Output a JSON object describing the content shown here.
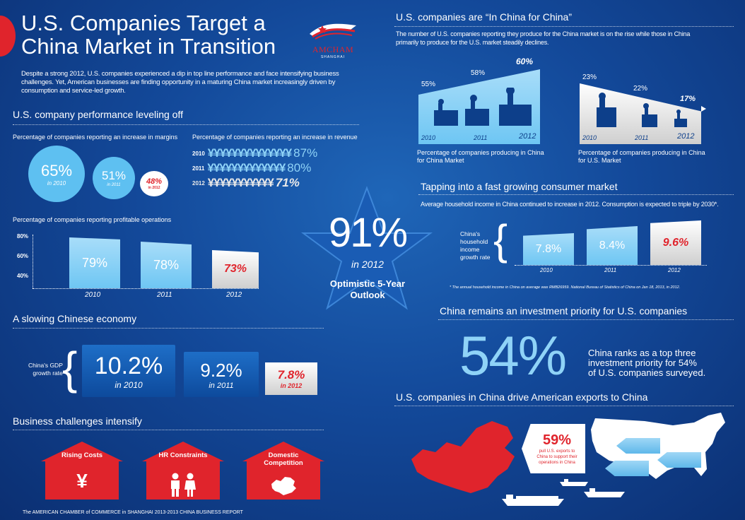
{
  "header": {
    "title_line1": "U.S. Companies Target a",
    "title_line2": "China Market in Transition",
    "logo_main": "AMCHAM",
    "logo_sub": "SHANGHAI",
    "intro": "Despite a strong 2012, U.S. companies experienced a dip in top line performance and face intensifying business challenges. Yet, American businesses are finding opportunity in a maturing China market increasingly driven by consumption and service-led growth."
  },
  "performance": {
    "heading": "U.S. company performance leveling off",
    "margins": {
      "label": "Percentage of companies reporting an increase in margins",
      "items": [
        {
          "value": "65%",
          "year": "in 2010"
        },
        {
          "value": "51%",
          "year": "in 2011"
        },
        {
          "value": "48%",
          "year": "in 2012"
        }
      ]
    },
    "revenue": {
      "label": "Percentage of companies reporting an increase in revenue",
      "rows": [
        {
          "year": "2010",
          "symbols": "¥¥¥¥¥¥¥¥¥¥¥¥¥¥",
          "value": "87%"
        },
        {
          "year": "2011",
          "symbols": "¥¥¥¥¥¥¥¥¥¥¥¥¥",
          "value": "80%"
        },
        {
          "year": "2012",
          "symbols": "¥¥¥¥¥¥¥¥¥¥¥",
          "value": "71%"
        }
      ]
    },
    "profitable": {
      "label": "Percentage of companies reporting profitable operations",
      "ticks": [
        "80%",
        "60%",
        "40%"
      ],
      "bars": [
        {
          "value": "79%",
          "year": "2010"
        },
        {
          "value": "78%",
          "year": "2011"
        },
        {
          "value": "73%",
          "year": "2012"
        }
      ]
    }
  },
  "star": {
    "value": "91%",
    "year": "in 2012",
    "label_line1": "Optimistic 5-Year",
    "label_line2": "Outlook"
  },
  "economy": {
    "heading": "A slowing Chinese economy",
    "label_line1": "China's GDP",
    "label_line2": "growth rate",
    "items": [
      {
        "value": "10.2%",
        "year": "in 2010"
      },
      {
        "value": "9.2%",
        "year": "in 2011"
      },
      {
        "value": "7.8%",
        "year": "in 2012"
      }
    ]
  },
  "challenges": {
    "heading": "Business challenges intensify",
    "items": [
      {
        "line1": "Rising Costs",
        "line2": "",
        "icon": "¥"
      },
      {
        "line1": "HR Constraints",
        "line2": "",
        "icon": "people-icon"
      },
      {
        "line1": "Domestic",
        "line2": "Competition",
        "icon": "china-map-icon"
      }
    ]
  },
  "footer": "The AMERICAN CHAMBER of COMMERCE in SHANGHAI 2013-2013 CHINA BUSINESS REPORT",
  "inchina": {
    "heading": "U.S. companies are “In China for China”",
    "desc": "The number of U.S. companies reporting they produce for the China market is on the rise while those in China primarily to produce for the U.S. market steadily declines.",
    "china_market": {
      "values": [
        "55%",
        "58%",
        "60%"
      ],
      "years": [
        "2010",
        "2011",
        "2012"
      ],
      "caption_line1": "Percentage of companies producing in China",
      "caption_line2": "for China Market"
    },
    "us_market": {
      "values": [
        "23%",
        "22%",
        "17%"
      ],
      "years": [
        "2010",
        "2011",
        "2012"
      ],
      "caption_line1": "Percentage of companies producing in China",
      "caption_line2": "for U.S. Market"
    }
  },
  "consumer": {
    "heading": "Tapping into a fast growing consumer market",
    "desc": "Average household  income in China continued to increase in 2012. Consumption is expected to triple by 2030*.",
    "label": [
      "China's",
      "household",
      "income",
      "growth rate"
    ],
    "bars": [
      {
        "value": "7.8%",
        "year": "2010"
      },
      {
        "value": "8.4%",
        "year": "2011"
      },
      {
        "value": "9.6%",
        "year": "2012"
      }
    ],
    "note": "* The annual household income in China on average was RMB26959. National Bureau of Statistics of China on Jan 18, 2013, in 2012."
  },
  "investment": {
    "heading": "China remains an investment priority for U.S. companies",
    "value": "54%",
    "text_line1": "China ranks as a top three",
    "text_line2": "investment priority for 54%",
    "text_line3": "of U.S. companies surveyed."
  },
  "exports": {
    "heading": "U.S. companies in China drive American exports to China",
    "value": "59%",
    "text_line1": "pull U.S. exports to",
    "text_line2": "China to support their",
    "text_line3": "operations in China"
  },
  "colors": {
    "red": "#e0242c",
    "light_blue": "#8fd3f7",
    "navy": "#0b2f72"
  }
}
